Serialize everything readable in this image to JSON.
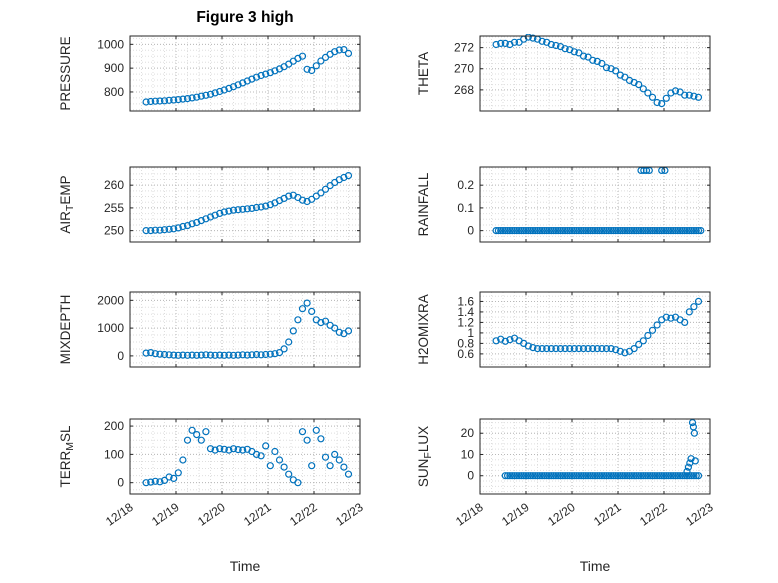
{
  "figure": {
    "title": "Figure 3 high",
    "background": "#ffffff",
    "marker_color": "#0072BD",
    "axis_color": "#262626",
    "grid_color": "#b8b8b8",
    "minor_grid_color": "#dedede"
  },
  "x_axis": {
    "label": "Time",
    "xlim": [
      0,
      5
    ],
    "ticks": [
      0,
      1,
      2,
      3,
      4,
      5
    ],
    "labels": [
      "12/18",
      "12/19",
      "12/20",
      "12/21",
      "12/22",
      "12/23"
    ]
  },
  "chart_data": [
    {
      "type": "scatter",
      "name": "pressure",
      "row": 0,
      "col": 0,
      "ylabel_parts": [
        {
          "text": "PRESSURE"
        }
      ],
      "ylim": [
        720,
        1035
      ],
      "yticks": [
        800,
        900,
        1000
      ],
      "yticklabels": [
        "800",
        "900",
        "1000"
      ],
      "minor_step": 25,
      "x": [
        0.35,
        0.45,
        0.55,
        0.65,
        0.75,
        0.85,
        0.95,
        1.05,
        1.15,
        1.25,
        1.35,
        1.45,
        1.55,
        1.65,
        1.75,
        1.85,
        1.95,
        2.05,
        2.15,
        2.25,
        2.35,
        2.45,
        2.55,
        2.65,
        2.75,
        2.85,
        2.95,
        3.05,
        3.15,
        3.25,
        3.35,
        3.45,
        3.55,
        3.65,
        3.75,
        3.85,
        3.95,
        4.05,
        4.15,
        4.25,
        4.35,
        4.45,
        4.55,
        4.65,
        4.75
      ],
      "y": [
        758,
        760,
        761,
        762,
        763,
        765,
        766,
        768,
        770,
        772,
        775,
        778,
        782,
        786,
        790,
        796,
        802,
        808,
        815,
        822,
        830,
        838,
        846,
        854,
        862,
        869,
        875,
        881,
        889,
        897,
        906,
        917,
        929,
        941,
        950,
        895,
        890,
        910,
        930,
        945,
        958,
        969,
        976,
        978,
        962
      ]
    },
    {
      "type": "scatter",
      "name": "theta",
      "row": 0,
      "col": 1,
      "ylabel_parts": [
        {
          "text": "THETA"
        }
      ],
      "ylim": [
        266,
        273.1
      ],
      "yticks": [
        268,
        270,
        272
      ],
      "yticklabels": [
        "268",
        "270",
        "272"
      ],
      "minor_step": 0.5,
      "x": [
        0.35,
        0.45,
        0.55,
        0.65,
        0.75,
        0.85,
        0.95,
        1.05,
        1.15,
        1.25,
        1.35,
        1.45,
        1.55,
        1.65,
        1.75,
        1.85,
        1.95,
        2.05,
        2.15,
        2.25,
        2.35,
        2.45,
        2.55,
        2.65,
        2.75,
        2.85,
        2.95,
        3.05,
        3.15,
        3.25,
        3.35,
        3.45,
        3.55,
        3.65,
        3.75,
        3.85,
        3.95,
        4.05,
        4.15,
        4.25,
        4.35,
        4.45,
        4.55,
        4.65,
        4.75
      ],
      "y": [
        272.3,
        272.4,
        272.4,
        272.3,
        272.5,
        272.5,
        272.8,
        273.0,
        272.9,
        272.8,
        272.6,
        272.5,
        272.3,
        272.2,
        272.1,
        271.9,
        271.8,
        271.6,
        271.5,
        271.2,
        271.1,
        270.8,
        270.7,
        270.5,
        270.1,
        270.0,
        269.8,
        269.4,
        269.2,
        268.9,
        268.7,
        268.5,
        268.1,
        267.7,
        267.3,
        266.8,
        266.7,
        267.2,
        267.7,
        267.9,
        267.8,
        267.5,
        267.5,
        267.4,
        267.3
      ]
    },
    {
      "type": "scatter",
      "name": "airtemp",
      "row": 1,
      "col": 0,
      "ylabel_parts": [
        {
          "text": "AIR"
        },
        {
          "text": "T",
          "sub": true
        },
        {
          "text": "EMP"
        }
      ],
      "ylim": [
        247.5,
        264
      ],
      "yticks": [
        250,
        255,
        260
      ],
      "yticklabels": [
        "250",
        "255",
        "260"
      ],
      "minor_step": 1.25,
      "x": [
        0.35,
        0.45,
        0.55,
        0.65,
        0.75,
        0.85,
        0.95,
        1.05,
        1.15,
        1.25,
        1.35,
        1.45,
        1.55,
        1.65,
        1.75,
        1.85,
        1.95,
        2.05,
        2.15,
        2.25,
        2.35,
        2.45,
        2.55,
        2.65,
        2.75,
        2.85,
        2.95,
        3.05,
        3.15,
        3.25,
        3.35,
        3.45,
        3.55,
        3.65,
        3.75,
        3.85,
        3.95,
        4.05,
        4.15,
        4.25,
        4.35,
        4.45,
        4.55,
        4.65,
        4.75
      ],
      "y": [
        250.0,
        250.0,
        250.1,
        250.1,
        250.2,
        250.3,
        250.4,
        250.6,
        250.9,
        251.1,
        251.5,
        251.8,
        252.2,
        252.6,
        253.0,
        253.4,
        253.8,
        254.1,
        254.3,
        254.5,
        254.6,
        254.7,
        254.8,
        254.9,
        255.1,
        255.2,
        255.4,
        255.7,
        256.1,
        256.6,
        257.1,
        257.6,
        257.8,
        257.3,
        256.7,
        256.4,
        256.9,
        257.6,
        258.3,
        259.1,
        259.9,
        260.6,
        261.2,
        261.7,
        262.1
      ]
    },
    {
      "type": "scatter",
      "name": "rainfall",
      "row": 1,
      "col": 1,
      "ylabel_parts": [
        {
          "text": "RAINFALL"
        }
      ],
      "ylim": [
        -0.05,
        0.28
      ],
      "yticks": [
        0,
        0.1,
        0.2
      ],
      "yticklabels": [
        "0",
        "0.1",
        "0.2"
      ],
      "minor_step": 0.025,
      "x": [
        0.35,
        0.4,
        0.45,
        0.5,
        0.55,
        0.6,
        0.65,
        0.7,
        0.75,
        0.8,
        0.85,
        0.9,
        0.95,
        1,
        1.05,
        1.1,
        1.15,
        1.2,
        1.25,
        1.3,
        1.35,
        1.4,
        1.45,
        1.5,
        1.55,
        1.6,
        1.65,
        1.7,
        1.75,
        1.8,
        1.85,
        1.9,
        1.95,
        2,
        2.05,
        2.1,
        2.15,
        2.2,
        2.25,
        2.3,
        2.35,
        2.4,
        2.45,
        2.5,
        2.55,
        2.6,
        2.65,
        2.7,
        2.75,
        2.8,
        2.85,
        2.9,
        2.95,
        3,
        3.05,
        3.1,
        3.15,
        3.2,
        3.25,
        3.3,
        3.35,
        3.4,
        3.45,
        3.5,
        3.55,
        3.6,
        3.65,
        3.7,
        3.75,
        3.8,
        3.85,
        3.9,
        3.95,
        4,
        4.05,
        4.1,
        4.15,
        4.2,
        4.25,
        4.3,
        4.35,
        4.4,
        4.45,
        4.5,
        4.55,
        4.6,
        4.65,
        4.7,
        4.75,
        4.8,
        3.5,
        3.56,
        3.62,
        3.68,
        3.95,
        4.02
      ],
      "y": [
        0,
        0,
        0,
        0,
        0,
        0,
        0,
        0,
        0,
        0,
        0,
        0,
        0,
        0,
        0,
        0,
        0,
        0,
        0,
        0,
        0,
        0,
        0,
        0,
        0,
        0,
        0,
        0,
        0,
        0,
        0,
        0,
        0,
        0,
        0,
        0,
        0,
        0,
        0,
        0,
        0,
        0,
        0,
        0,
        0,
        0,
        0,
        0,
        0,
        0,
        0,
        0,
        0,
        0,
        0,
        0,
        0,
        0,
        0,
        0,
        0,
        0,
        0,
        0,
        0,
        0,
        0,
        0,
        0,
        0,
        0,
        0,
        0,
        0,
        0,
        0,
        0,
        0,
        0,
        0,
        0,
        0,
        0,
        0,
        0,
        0,
        0,
        0,
        0,
        0,
        0.265,
        0.265,
        0.265,
        0.265,
        0.265,
        0.265
      ]
    },
    {
      "type": "scatter",
      "name": "mixdepth",
      "row": 2,
      "col": 0,
      "ylabel_parts": [
        {
          "text": "MIXDEPTH"
        }
      ],
      "ylim": [
        -400,
        2300
      ],
      "yticks": [
        0,
        1000,
        2000
      ],
      "yticklabels": [
        "0",
        "1000",
        "2000"
      ],
      "minor_step": 250,
      "x": [
        0.35,
        0.45,
        0.55,
        0.65,
        0.75,
        0.85,
        0.95,
        1.05,
        1.15,
        1.25,
        1.35,
        1.45,
        1.55,
        1.65,
        1.75,
        1.85,
        1.95,
        2.05,
        2.15,
        2.25,
        2.35,
        2.45,
        2.55,
        2.65,
        2.75,
        2.85,
        2.95,
        3.05,
        3.15,
        3.25,
        3.35,
        3.45,
        3.55,
        3.65,
        3.75,
        3.85,
        3.95,
        4.05,
        4.15,
        4.25,
        4.35,
        4.45,
        4.55,
        4.65,
        4.75
      ],
      "y": [
        100,
        120,
        80,
        60,
        50,
        40,
        30,
        20,
        30,
        20,
        30,
        20,
        30,
        40,
        30,
        20,
        30,
        20,
        30,
        20,
        30,
        40,
        30,
        40,
        50,
        40,
        50,
        60,
        80,
        120,
        250,
        500,
        900,
        1300,
        1700,
        1900,
        1600,
        1300,
        1200,
        1250,
        1100,
        1000,
        850,
        800,
        900
      ]
    },
    {
      "type": "scatter",
      "name": "h2omixra",
      "row": 2,
      "col": 1,
      "ylabel_parts": [
        {
          "text": "H2OMIXRA"
        }
      ],
      "ylim": [
        0.35,
        1.78
      ],
      "yticks": [
        0.6,
        0.8,
        1,
        1.2,
        1.4,
        1.6
      ],
      "yticklabels": [
        "0.6",
        "0.8",
        "1",
        "1.2",
        "1.4",
        "1.6"
      ],
      "minor_step": 0.1,
      "x": [
        0.35,
        0.45,
        0.55,
        0.65,
        0.75,
        0.85,
        0.95,
        1.05,
        1.15,
        1.25,
        1.35,
        1.45,
        1.55,
        1.65,
        1.75,
        1.85,
        1.95,
        2.05,
        2.15,
        2.25,
        2.35,
        2.45,
        2.55,
        2.65,
        2.75,
        2.85,
        2.95,
        3.05,
        3.15,
        3.25,
        3.35,
        3.45,
        3.55,
        3.65,
        3.75,
        3.85,
        3.95,
        4.05,
        4.15,
        4.25,
        4.35,
        4.45,
        4.55,
        4.65,
        4.75
      ],
      "y": [
        0.85,
        0.88,
        0.84,
        0.87,
        0.9,
        0.85,
        0.8,
        0.75,
        0.72,
        0.7,
        0.7,
        0.7,
        0.7,
        0.7,
        0.7,
        0.7,
        0.7,
        0.7,
        0.7,
        0.7,
        0.7,
        0.7,
        0.7,
        0.7,
        0.7,
        0.7,
        0.68,
        0.65,
        0.62,
        0.65,
        0.7,
        0.78,
        0.85,
        0.95,
        1.05,
        1.15,
        1.25,
        1.3,
        1.28,
        1.3,
        1.25,
        1.2,
        1.4,
        1.5,
        1.6
      ]
    },
    {
      "type": "scatter",
      "name": "terrmsl",
      "row": 3,
      "col": 0,
      "ylabel_parts": [
        {
          "text": "TERR"
        },
        {
          "text": "M",
          "sub": true
        },
        {
          "text": "SL"
        }
      ],
      "ylim": [
        -40,
        225
      ],
      "yticks": [
        0,
        100,
        200
      ],
      "yticklabels": [
        "0",
        "100",
        "200"
      ],
      "minor_step": 25,
      "x": [
        0.35,
        0.45,
        0.55,
        0.65,
        0.75,
        0.85,
        0.95,
        1.05,
        1.15,
        1.25,
        1.35,
        1.45,
        1.55,
        1.65,
        1.75,
        1.85,
        1.95,
        2.05,
        2.15,
        2.25,
        2.35,
        2.45,
        2.55,
        2.65,
        2.75,
        2.85,
        2.95,
        3.05,
        3.15,
        3.25,
        3.35,
        3.45,
        3.55,
        3.65,
        3.75,
        3.85,
        3.95,
        4.05,
        4.15,
        4.25,
        4.35,
        4.45,
        4.55,
        4.65,
        4.75
      ],
      "y": [
        0,
        2,
        5,
        3,
        8,
        20,
        15,
        35,
        80,
        150,
        185,
        170,
        150,
        180,
        120,
        115,
        120,
        118,
        115,
        120,
        117,
        115,
        118,
        110,
        100,
        95,
        130,
        60,
        110,
        80,
        55,
        30,
        10,
        0,
        180,
        150,
        60,
        185,
        155,
        90,
        60,
        100,
        80,
        55,
        30
      ]
    },
    {
      "type": "scatter",
      "name": "sunflux",
      "row": 3,
      "col": 1,
      "ylabel_parts": [
        {
          "text": "SUN"
        },
        {
          "text": "F",
          "sub": true
        },
        {
          "text": "LUX"
        }
      ],
      "ylim": [
        -8.6,
        26.7
      ],
      "yticks": [
        0,
        10,
        20
      ],
      "yticklabels": [
        "0",
        "10",
        "20"
      ],
      "minor_step": 2.5,
      "x": [
        0.55,
        0.6,
        0.65,
        0.7,
        0.75,
        0.8,
        0.85,
        0.9,
        0.95,
        1,
        1.05,
        1.1,
        1.15,
        1.2,
        1.25,
        1.3,
        1.35,
        1.4,
        1.45,
        1.5,
        1.55,
        1.6,
        1.65,
        1.7,
        1.75,
        1.8,
        1.85,
        1.9,
        1.95,
        2,
        2.05,
        2.1,
        2.15,
        2.2,
        2.25,
        2.3,
        2.35,
        2.4,
        2.45,
        2.5,
        2.55,
        2.6,
        2.65,
        2.7,
        2.75,
        2.8,
        2.85,
        2.9,
        2.95,
        3,
        3.05,
        3.1,
        3.15,
        3.2,
        3.25,
        3.3,
        3.35,
        3.4,
        3.45,
        3.5,
        3.55,
        3.6,
        3.65,
        3.7,
        3.75,
        3.8,
        3.85,
        3.9,
        3.95,
        4,
        4.05,
        4.1,
        4.15,
        4.2,
        4.25,
        4.3,
        4.35,
        4.4,
        4.45,
        4.5,
        4.55,
        4.6,
        4.65,
        4.7,
        4.75,
        4.5,
        4.53,
        4.56,
        4.59,
        4.62,
        4.64,
        4.66,
        4.68
      ],
      "y": [
        0,
        0,
        0,
        0,
        0,
        0,
        0,
        0,
        0,
        0,
        0,
        0,
        0,
        0,
        0,
        0,
        0,
        0,
        0,
        0,
        0,
        0,
        0,
        0,
        0,
        0,
        0,
        0,
        0,
        0,
        0,
        0,
        0,
        0,
        0,
        0,
        0,
        0,
        0,
        0,
        0,
        0,
        0,
        0,
        0,
        0,
        0,
        0,
        0,
        0,
        0,
        0,
        0,
        0,
        0,
        0,
        0,
        0,
        0,
        0,
        0,
        0,
        0,
        0,
        0,
        0,
        0,
        0,
        0,
        0,
        0,
        0,
        0,
        0,
        0,
        0,
        0,
        0,
        0,
        0,
        0,
        0,
        0,
        0,
        0,
        2,
        4,
        6,
        8,
        25,
        23,
        20,
        7
      ]
    }
  ]
}
